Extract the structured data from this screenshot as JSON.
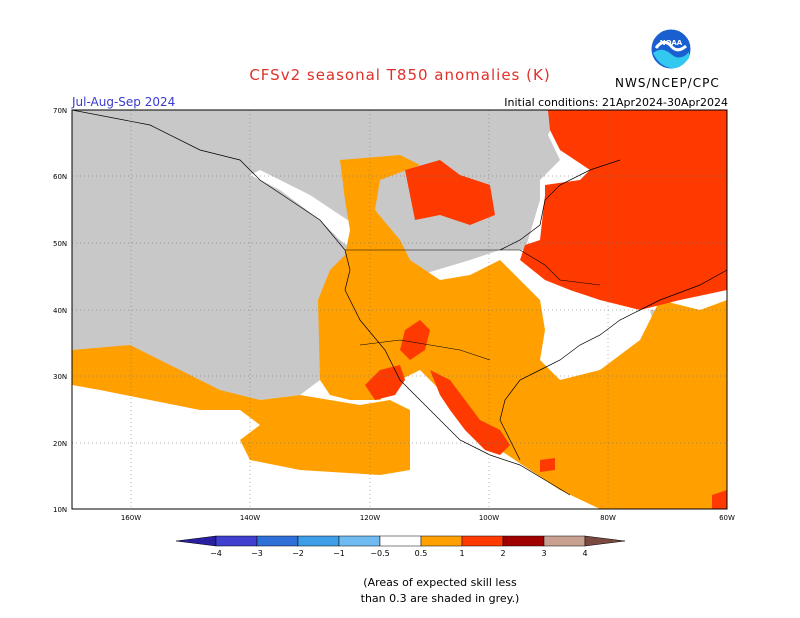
{
  "title": "CFSv2 seasonal T850 anomalies (K)",
  "agency": "NWS/NCEP/CPC",
  "logo_text": "NOAA",
  "season": "Jul-Aug-Sep 2024",
  "initial_conditions": "Initial conditions: 21Apr2024-30Apr2024",
  "lat_labels": [
    "70N",
    "60N",
    "50N",
    "40N",
    "30N",
    "20N",
    "10N"
  ],
  "lon_labels": [
    "160W",
    "140W",
    "120W",
    "100W",
    "80W",
    "60W"
  ],
  "colorbar": {
    "labels": [
      "−4",
      "−3",
      "−2",
      "−1",
      "−0.5",
      "0.5",
      "1",
      "2",
      "3",
      "4"
    ],
    "colors": [
      "#2a1fa0",
      "#3f3fd0",
      "#2f6fd8",
      "#3f9ee8",
      "#6fbaf0",
      "#ffffff",
      "#ffa000",
      "#ff3a00",
      "#a00000",
      "#c8a090",
      "#7a4a40"
    ]
  },
  "note_line1": "(Areas of expected skill less",
  "note_line2": "than 0.3 are shaded in grey.)",
  "legend_meaning": {
    "grey": "#c8c8c8",
    "orange": "#ffa000",
    "red": "#ff3a00"
  }
}
